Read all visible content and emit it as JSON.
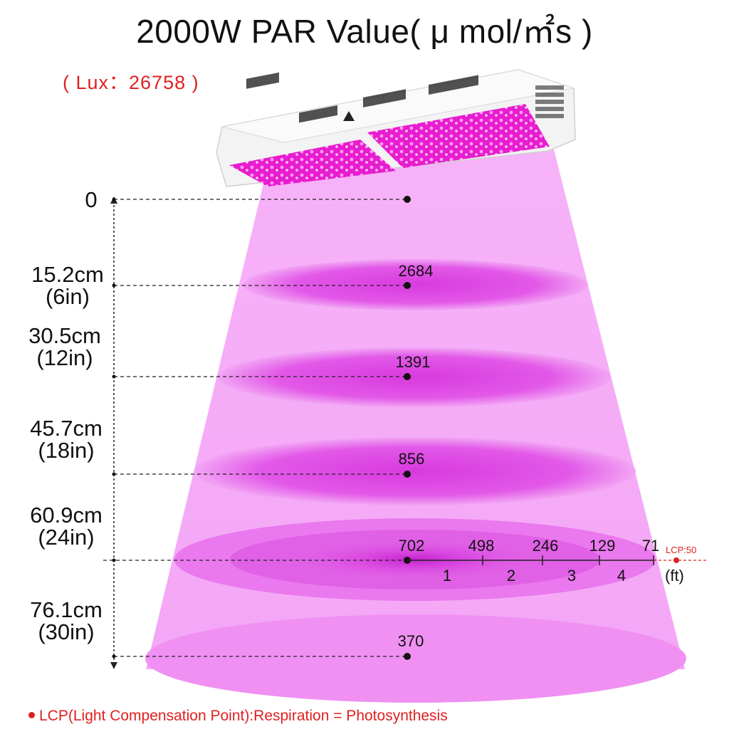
{
  "title": "2000W PAR Value( μ mol/㎡s )",
  "lux": "( Lux：26758 )",
  "distances": [
    {
      "cm": "0",
      "in": ""
    },
    {
      "cm": "15.2cm",
      "in": "(6in)"
    },
    {
      "cm": "30.5cm",
      "in": "(12in)"
    },
    {
      "cm": "45.7cm",
      "in": "(18in)"
    },
    {
      "cm": "60.9cm",
      "in": "(24in)"
    },
    {
      "cm": "76.1cm",
      "in": "(30in)"
    }
  ],
  "center_values": [
    "2684",
    "1391",
    "856",
    "702",
    "370"
  ],
  "horizontal_values": [
    "498",
    "246",
    "129",
    "71"
  ],
  "horizontal_ft": [
    "1",
    "2",
    "3",
    "4"
  ],
  "ft_unit": "(ft)",
  "lcp_marker": "LCP:50",
  "footer": "LCP(Light Compensation Point):Respiration = Photosynthesis",
  "colors": {
    "beam": "#f7b6f7",
    "ellipse": "#e050e6",
    "led": "#ff2ad4",
    "accent": "#e02020"
  }
}
